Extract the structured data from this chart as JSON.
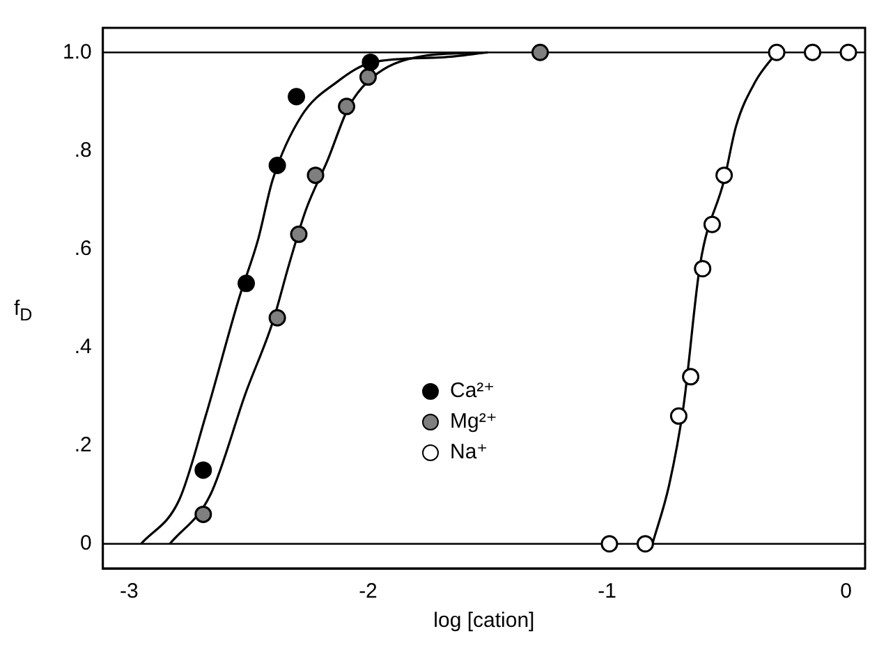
{
  "chart_data": {
    "type": "scatter",
    "xlabel": "log [cation]",
    "ylabel": "f$_{D}$",
    "xlim": [
      -3.11,
      0.08
    ],
    "ylim": [
      -0.05,
      1.05
    ],
    "xticks": [
      -3,
      -2,
      -1,
      0
    ],
    "yticks": [
      0,
      {
        "value": 0.2,
        "label": ".2"
      },
      {
        "value": 0.4,
        "label": ".4"
      },
      {
        "value": 0.6,
        "label": ".6"
      },
      {
        "value": 0.8,
        "label": ".8"
      },
      {
        "value": 1.0,
        "label": "1.0"
      }
    ],
    "grid": false,
    "legend": "center",
    "marker": "circle",
    "ref_lines": [
      {
        "axis": "y",
        "value": 0,
        "color": "#000000"
      },
      {
        "axis": "y",
        "value": 1.0,
        "color": "#000000"
      }
    ],
    "series": [
      {
        "name": "Ca²⁺",
        "color": "#000000",
        "x": [
          -2.69,
          -2.51,
          -2.38,
          -2.3,
          -1.99
        ],
        "values": [
          0.15,
          0.53,
          0.77,
          0.91,
          0.98
        ]
      },
      {
        "name": "Mg²⁺",
        "color": "#7f7f7f",
        "x": [
          -2.69,
          -2.38,
          -2.29,
          -2.22,
          -2.09,
          -2.0,
          -1.28
        ],
        "values": [
          0.06,
          0.46,
          0.63,
          0.75,
          0.89,
          0.95,
          1.0
        ]
      },
      {
        "name": "Na⁺",
        "color": "#ffffff",
        "x": [
          -0.99,
          -0.84,
          -0.7,
          -0.65,
          -0.6,
          -0.56,
          -0.51,
          -0.29,
          -0.14,
          0.01
        ],
        "values": [
          0,
          0,
          0.26,
          0.34,
          0.56,
          0.65,
          0.75,
          1.0,
          1.0,
          1.0
        ]
      },
      {
        "type": "line",
        "marker": "none",
        "color": "#000000",
        "x": [
          -2.95,
          -2.79,
          -2.68,
          -2.54,
          -2.46,
          -2.4,
          -2.28,
          -2.13,
          -1.98,
          -1.69,
          -1.5
        ],
        "values": [
          0,
          0.09,
          0.26,
          0.5,
          0.62,
          0.74,
          0.87,
          0.94,
          0.98,
          0.99,
          1.0
        ]
      },
      {
        "type": "line",
        "marker": "none",
        "color": "#000000",
        "x": [
          -2.83,
          -2.66,
          -2.51,
          -2.4,
          -2.33,
          -2.26,
          -2.17,
          -2.08,
          -1.98,
          -1.8,
          -1.5
        ],
        "values": [
          0,
          0.1,
          0.31,
          0.45,
          0.57,
          0.68,
          0.78,
          0.89,
          0.95,
          0.99,
          1.0
        ]
      },
      {
        "type": "line",
        "marker": "none",
        "color": "#000000",
        "x": [
          -0.81,
          -0.74,
          -0.68,
          -0.61,
          -0.51,
          -0.46,
          -0.38,
          -0.29
        ],
        "values": [
          0,
          0.12,
          0.28,
          0.57,
          0.74,
          0.85,
          0.94,
          1.0
        ]
      }
    ]
  }
}
